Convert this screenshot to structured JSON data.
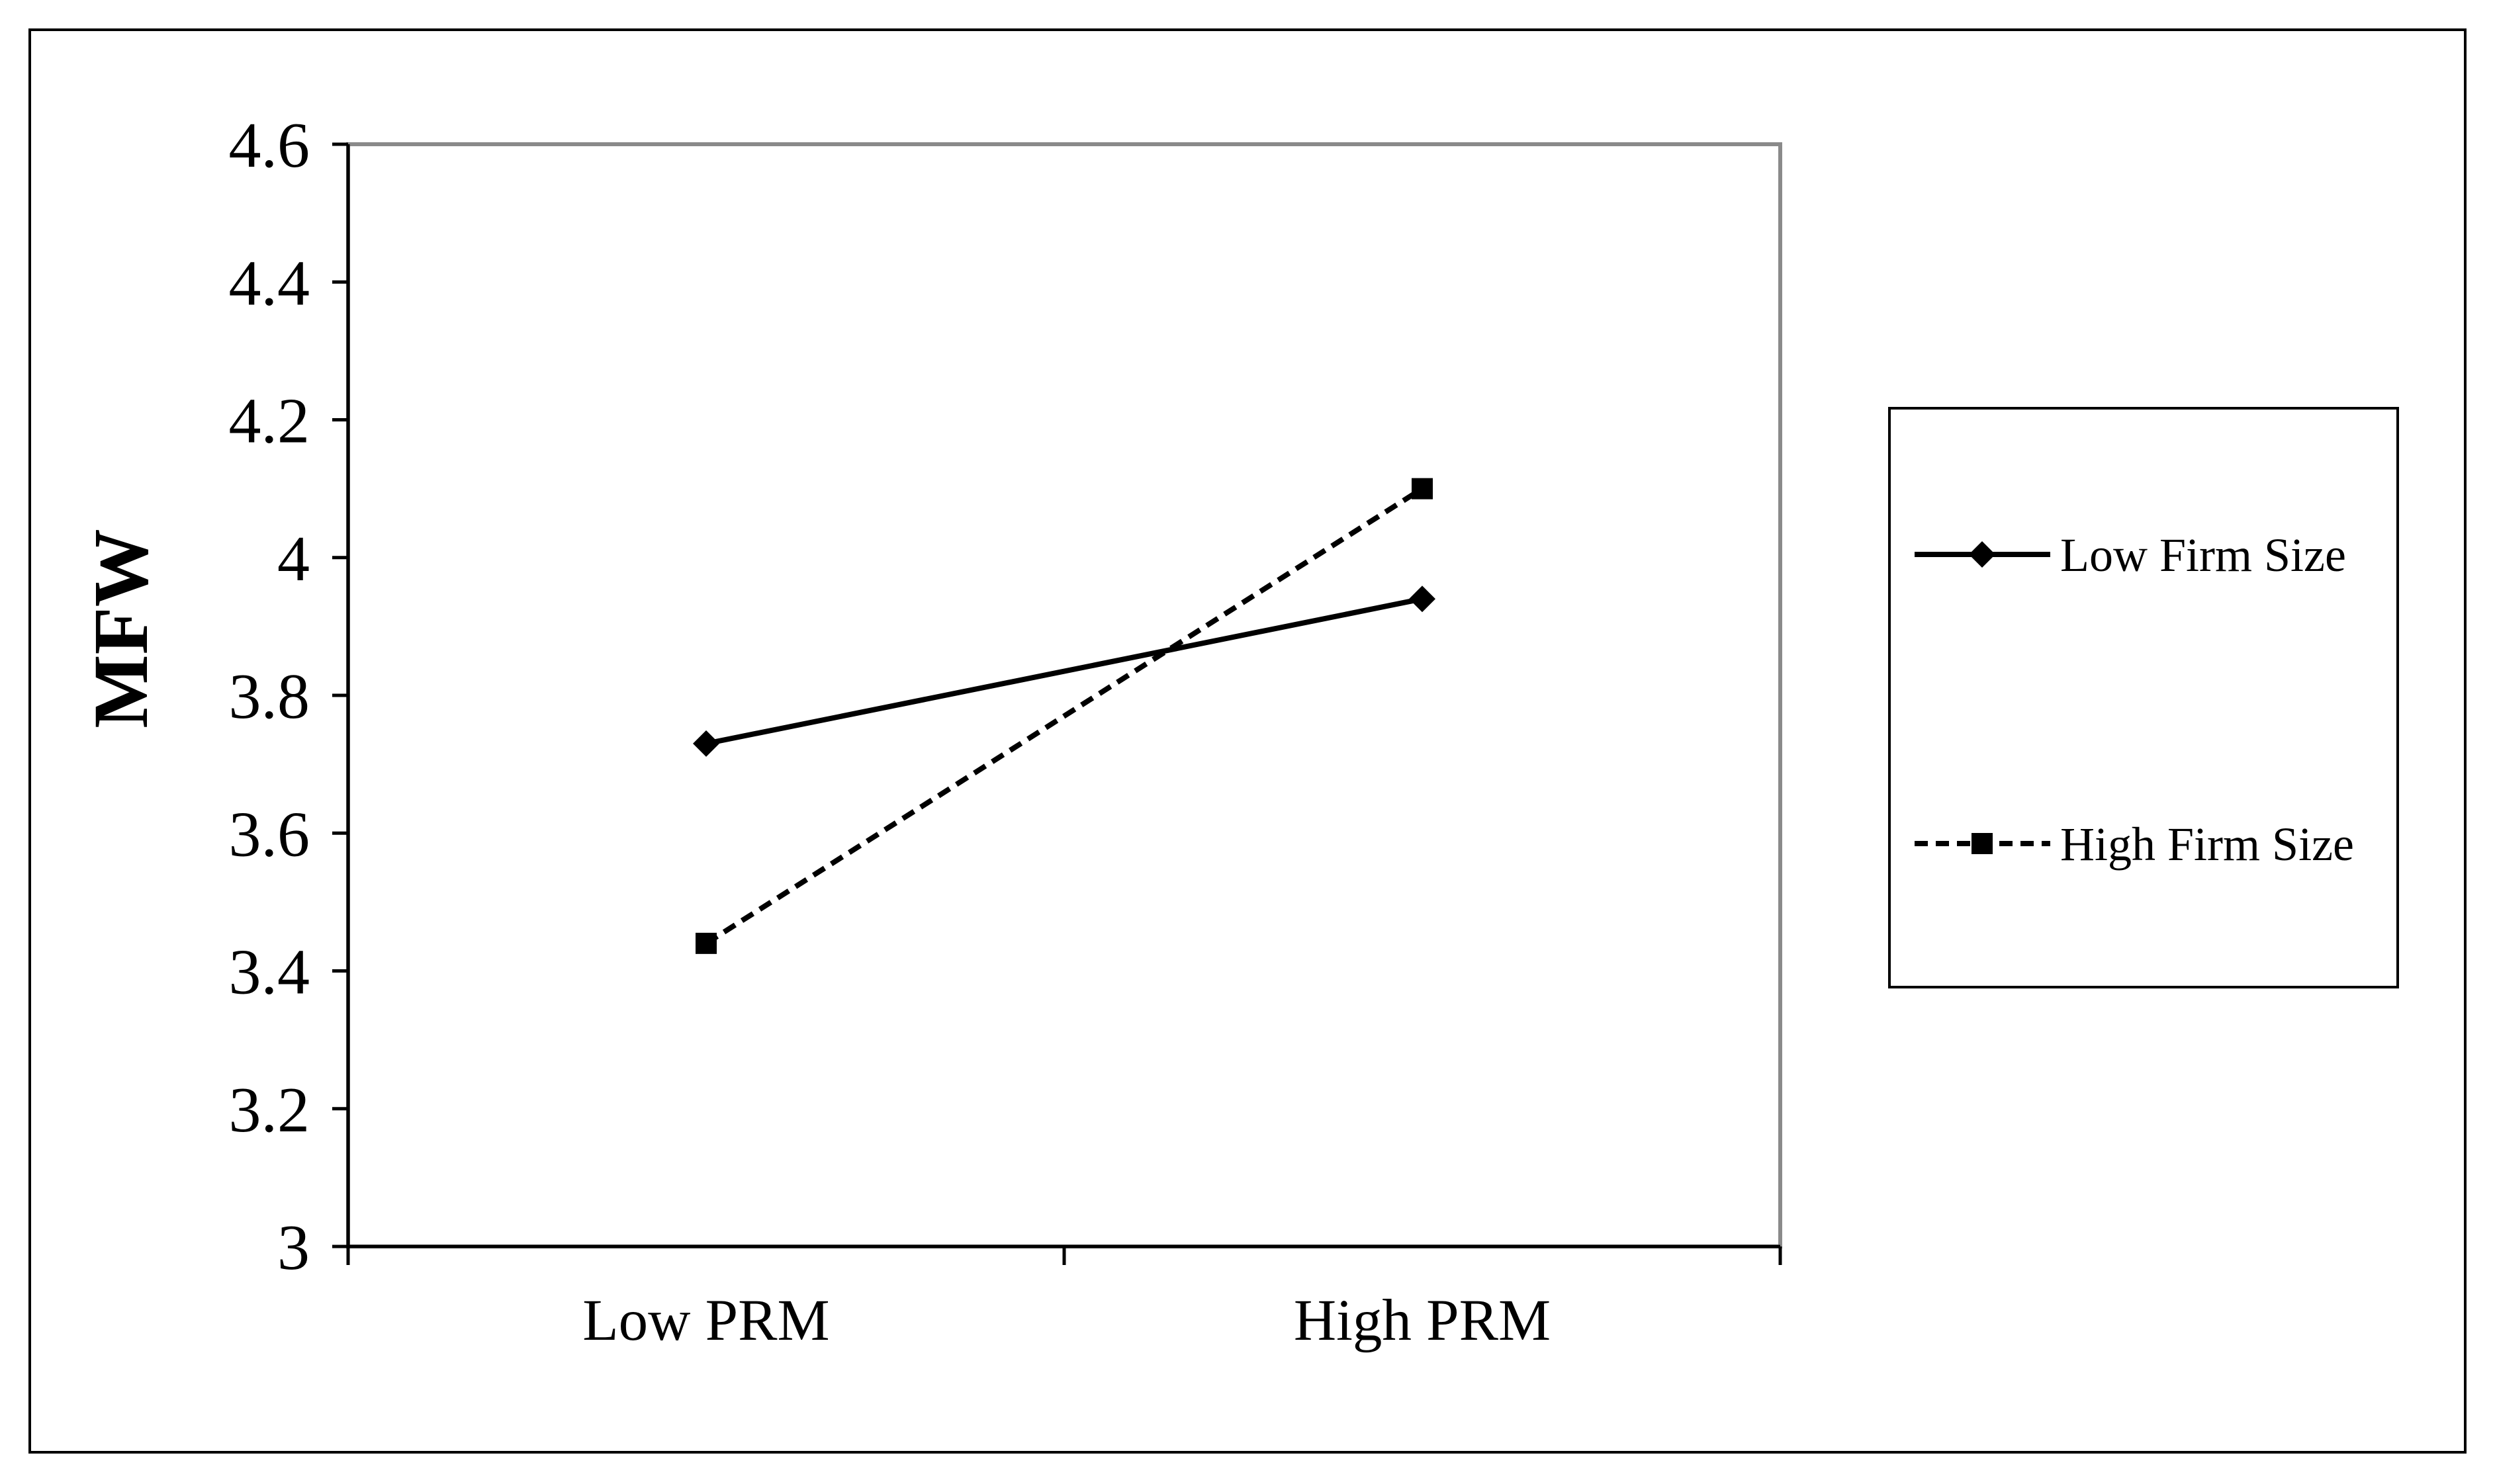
{
  "chart_data": {
    "type": "line",
    "title": "",
    "xlabel": "",
    "ylabel": "MFW",
    "categories": [
      "Low PRM",
      "High PRM"
    ],
    "ylim": [
      3,
      4.6
    ],
    "yticks": [
      "3",
      "3.2",
      "3.4",
      "3.6",
      "3.8",
      "4",
      "4.2",
      "4.4",
      "4.6"
    ],
    "series": [
      {
        "name": "Low Firm Size",
        "values": [
          3.73,
          3.94
        ],
        "marker": "diamond",
        "line_style": "solid",
        "color": "#000000"
      },
      {
        "name": "High Firm Size",
        "values": [
          3.44,
          4.1
        ],
        "marker": "square",
        "line_style": "dashed",
        "color": "#000000"
      }
    ],
    "grid": false,
    "legend_position": "right"
  }
}
